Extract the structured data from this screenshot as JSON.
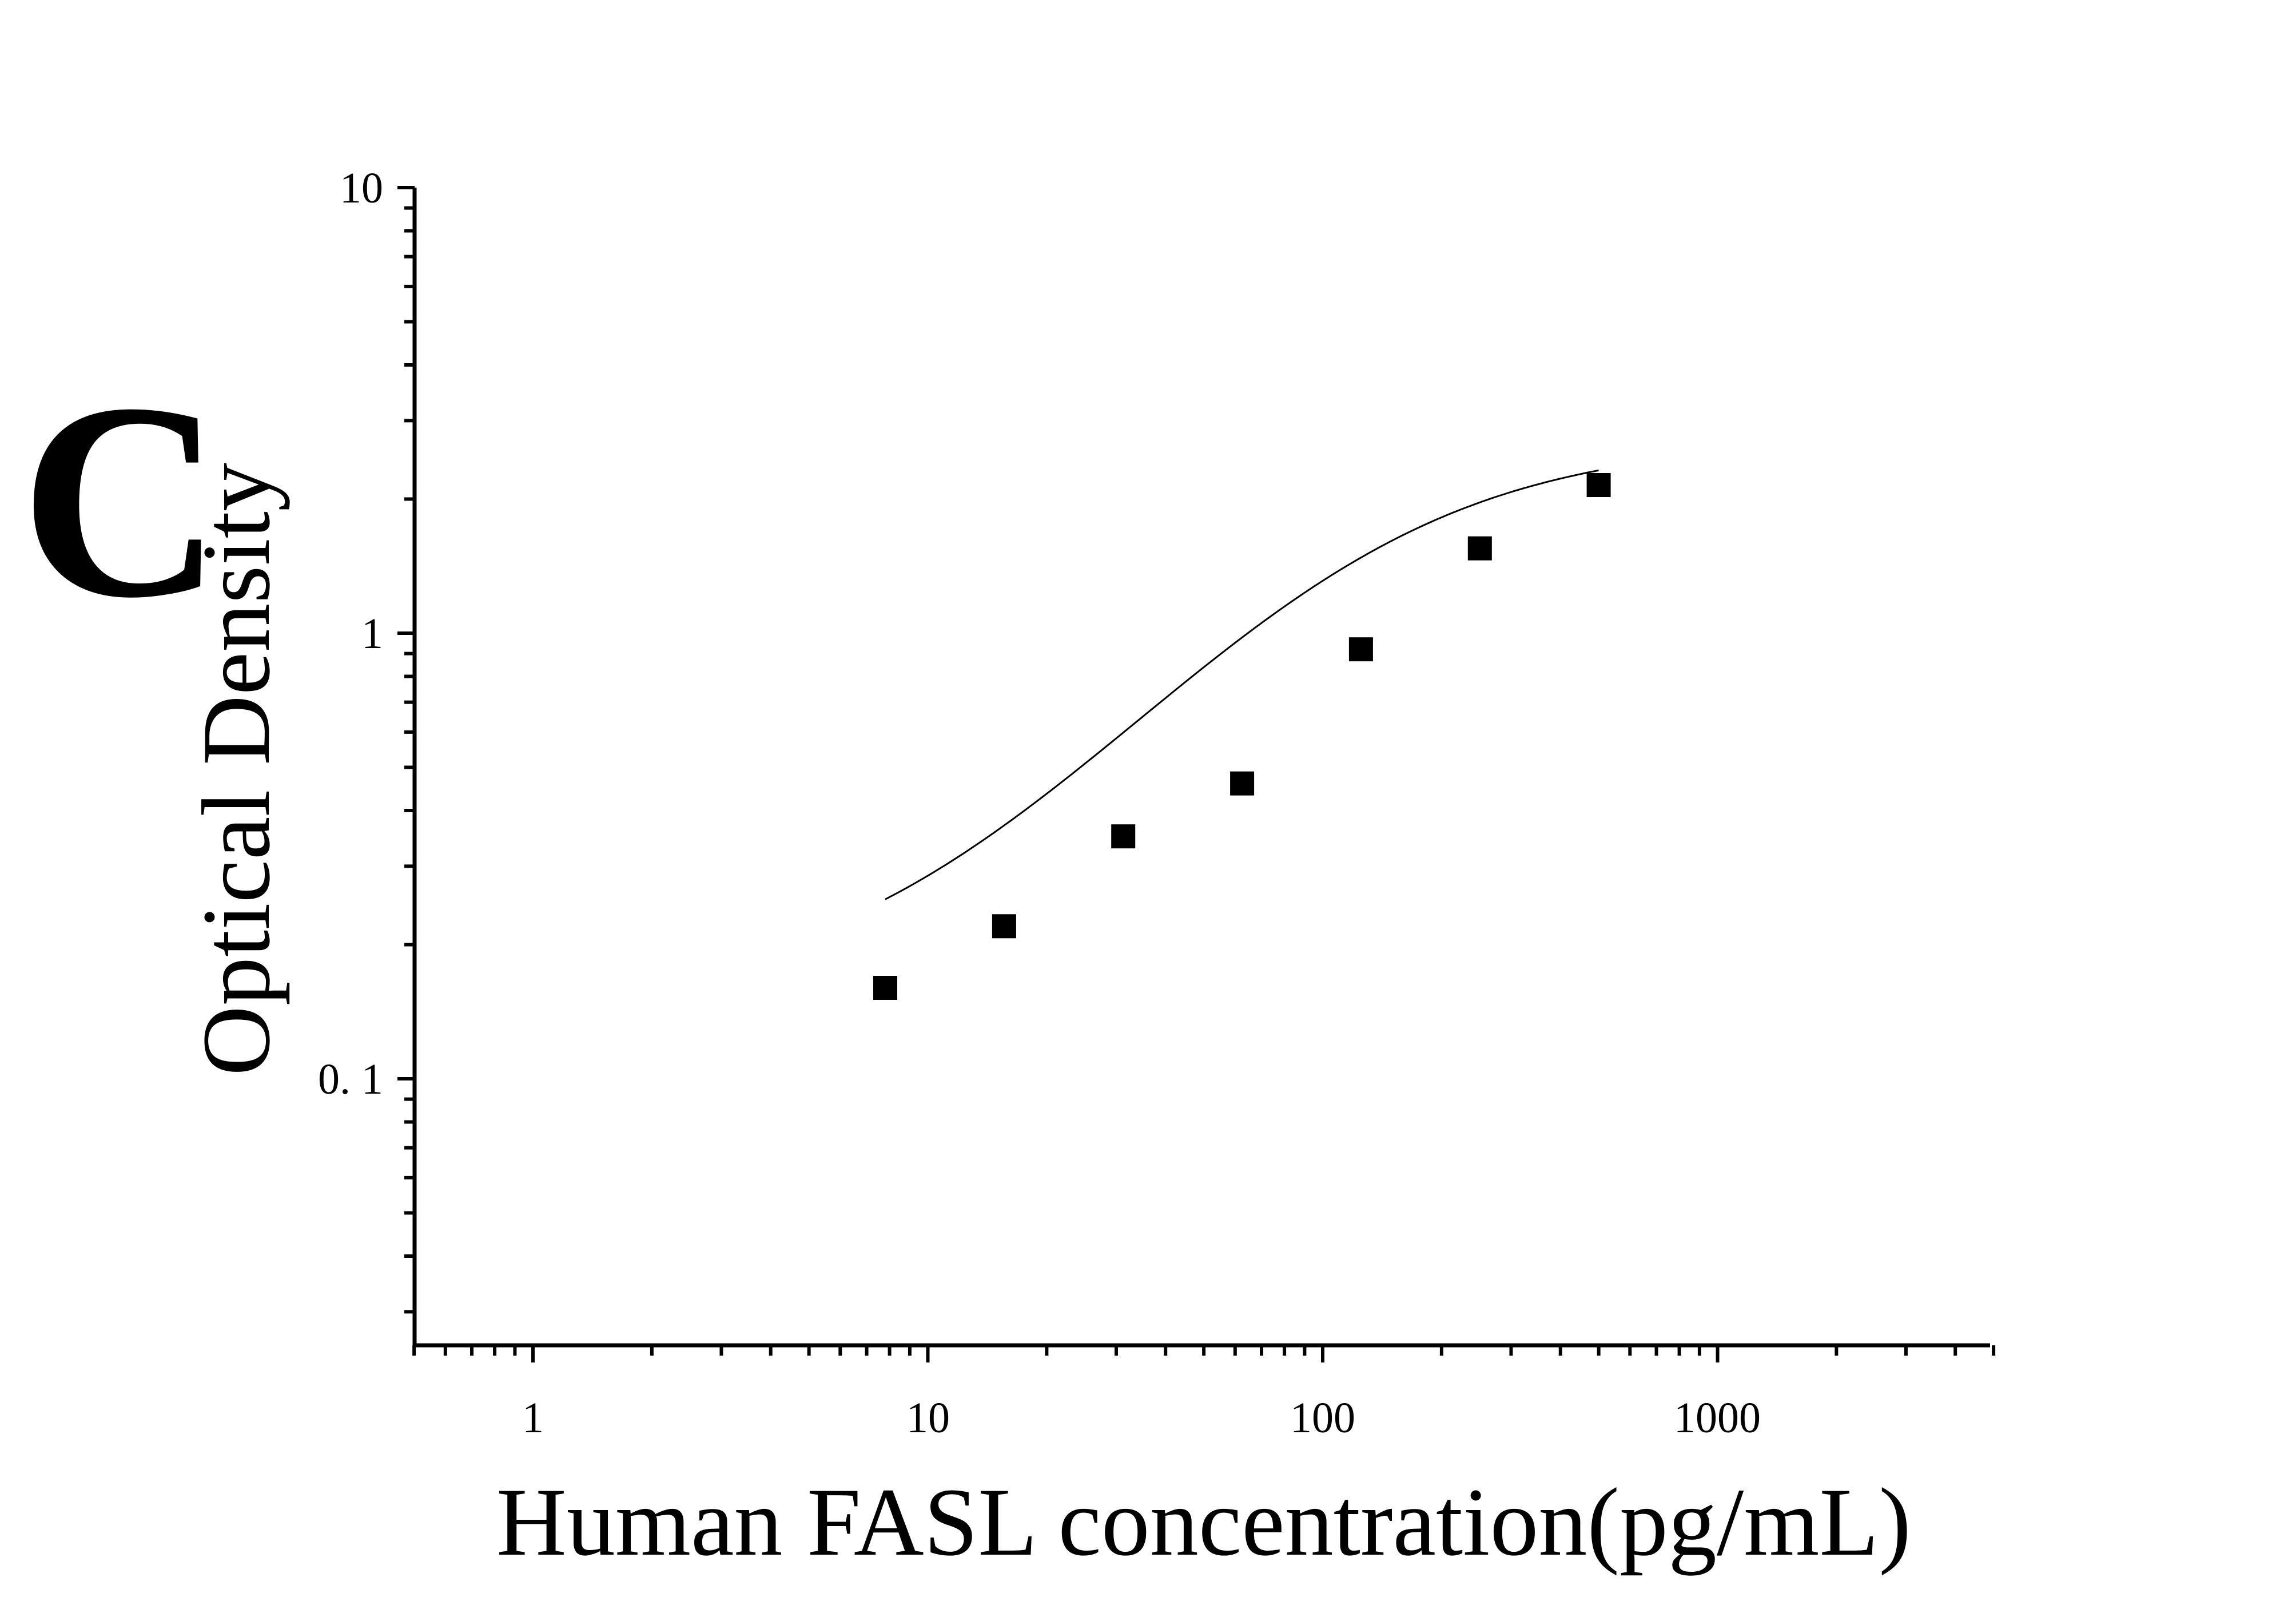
{
  "panel_label": "C",
  "chart_data": {
    "type": "scatter",
    "title": "",
    "xlabel": "Human FASL concentration(pg/mL)",
    "ylabel": "Optical Density",
    "x_scale": "log",
    "y_scale": "log",
    "xlim": [
      0.5,
      5000
    ],
    "ylim": [
      0.025,
      10
    ],
    "x_tick_labels": [
      "1",
      "10",
      "100",
      "1000"
    ],
    "y_tick_labels": [
      "10",
      "1",
      "0. 1"
    ],
    "grid": false,
    "legend": "none",
    "marker": "square",
    "color": "#000000",
    "points": [
      {
        "x": 7.8,
        "y": 0.16
      },
      {
        "x": 15.6,
        "y": 0.22
      },
      {
        "x": 31.25,
        "y": 0.35
      },
      {
        "x": 62.5,
        "y": 0.46
      },
      {
        "x": 125,
        "y": 0.92
      },
      {
        "x": 250,
        "y": 1.55
      },
      {
        "x": 500,
        "y": 2.15
      }
    ],
    "fit_curve": {
      "type": "4PL",
      "x_range": [
        7.8,
        500
      ],
      "params": {
        "bottom": 0.15,
        "top": 2.72,
        "ec50": 118,
        "hill": 1.17
      }
    }
  }
}
